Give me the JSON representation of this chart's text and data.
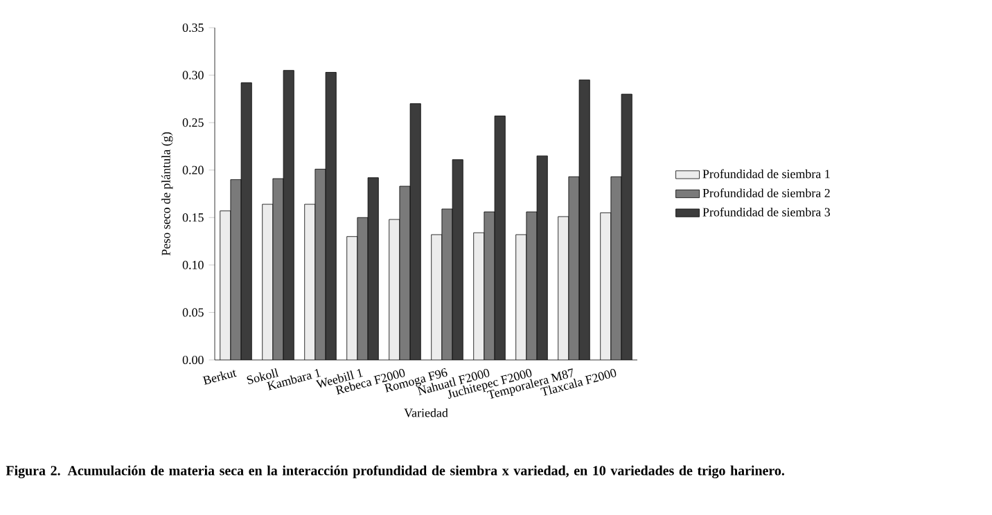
{
  "chart_data": {
    "type": "bar",
    "xlabel": "Variedad",
    "ylabel": "Peso seco de plántula (g)",
    "categories": [
      "Berkut",
      "Sokoll",
      "Kambara 1",
      "Weebill 1",
      "Rebeca F2000",
      "Romoga F96",
      "Nahuatl F2000",
      "Juchitepec F2000",
      "Temporalera M87",
      "Tlaxcala F2000"
    ],
    "series": [
      {
        "name": "Profundidad de siembra 1",
        "color": "#ececec",
        "values": [
          0.157,
          0.164,
          0.164,
          0.13,
          0.148,
          0.132,
          0.134,
          0.132,
          0.151,
          0.155
        ]
      },
      {
        "name": "Profundidad de siembra 2",
        "color": "#7a7a7a",
        "values": [
          0.19,
          0.191,
          0.201,
          0.15,
          0.183,
          0.159,
          0.156,
          0.156,
          0.193,
          0.193
        ]
      },
      {
        "name": "Profundidad de siembra 3",
        "color": "#3c3c3c",
        "values": [
          0.292,
          0.305,
          0.303,
          0.192,
          0.27,
          0.211,
          0.257,
          0.215,
          0.295,
          0.28
        ]
      }
    ],
    "ylim": [
      0,
      0.35
    ],
    "yticks": [
      {
        "value": 0,
        "label": "0.00"
      },
      {
        "value": 0.05,
        "label": "0.05"
      },
      {
        "value": 0.1,
        "label": "0.10"
      },
      {
        "value": 0.15,
        "label": "0.15"
      },
      {
        "value": 0.2,
        "label": "0.20"
      },
      {
        "value": 0.25,
        "label": "0.25"
      },
      {
        "value": 0.3,
        "label": "0.30"
      },
      {
        "value": 0.35,
        "label": "0.35"
      }
    ],
    "legend": "right",
    "annotations": [
      "Figura 2. Acumulación de materia seca en la interacción profundidad de siembra x variedad, en 10 variedades de trigo harinero."
    ]
  }
}
